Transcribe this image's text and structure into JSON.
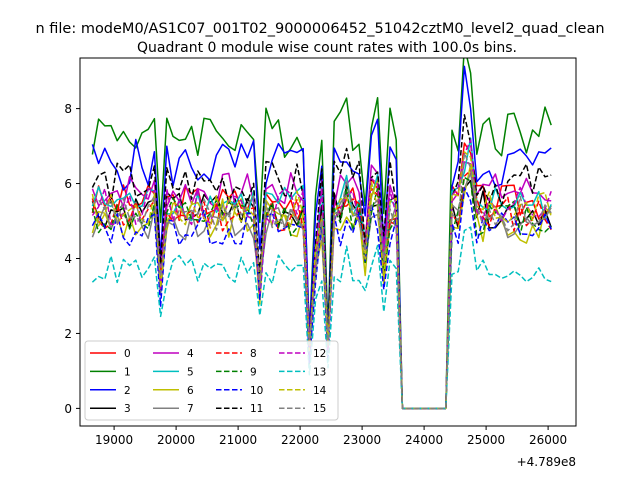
{
  "chart_data": {
    "type": "line",
    "suptitle": "n file: modeM0/AS1C07_001T02_9000006452_51042cztM0_level2_quad_clean",
    "title": "Quadrant 0 module wise count rates with 100.0s bins.",
    "xlabel": "",
    "ylabel": "",
    "x_offset_label": "+4.789e8",
    "xlim": [
      18450,
      26450
    ],
    "ylim": [
      -0.47,
      9.35
    ],
    "xticks": [
      19000,
      20000,
      21000,
      22000,
      23000,
      24000,
      25000,
      26000
    ],
    "xtick_labels": [
      "19000",
      "20000",
      "21000",
      "22000",
      "23000",
      "24000",
      "25000",
      "26000"
    ],
    "yticks": [
      0,
      2,
      4,
      6,
      8
    ],
    "ytick_labels": [
      "0",
      "2",
      "4",
      "6",
      "8"
    ],
    "grid": false,
    "legend_position": "lower-left",
    "x_range": [
      18650,
      26050
    ],
    "x_step": 100,
    "series": [
      {
        "name": "0",
        "color": "#ff0000",
        "dash": "solid",
        "base": 5.5,
        "amp": 0.5,
        "peak": 1.0
      },
      {
        "name": "1",
        "color": "#008000",
        "dash": "solid",
        "base": 7.4,
        "amp": 0.7,
        "peak": 1.0
      },
      {
        "name": "2",
        "color": "#0000ff",
        "dash": "solid",
        "base": 6.5,
        "amp": 0.7,
        "peak": 1.05
      },
      {
        "name": "3",
        "color": "#000000",
        "dash": "solid",
        "base": 5.3,
        "amp": 0.5,
        "peak": 1.0
      },
      {
        "name": "4",
        "color": "#bf00bf",
        "dash": "solid",
        "base": 5.8,
        "amp": 0.5,
        "peak": 1.0
      },
      {
        "name": "5",
        "color": "#00bfbf",
        "dash": "solid",
        "base": 5.5,
        "amp": 0.5,
        "peak": 1.0
      },
      {
        "name": "6",
        "color": "#bfbf00",
        "dash": "solid",
        "base": 5.0,
        "amp": 0.6,
        "peak": 1.0
      },
      {
        "name": "7",
        "color": "#808080",
        "dash": "solid",
        "base": 5.0,
        "amp": 0.5,
        "peak": 1.0
      },
      {
        "name": "8",
        "color": "#ff0000",
        "dash": "dashed",
        "base": 5.2,
        "amp": 0.5,
        "peak": 1.0
      },
      {
        "name": "9",
        "color": "#008000",
        "dash": "dashed",
        "base": 5.1,
        "amp": 0.5,
        "peak": 1.0
      },
      {
        "name": "10",
        "color": "#0000ff",
        "dash": "dashed",
        "base": 4.8,
        "amp": 0.5,
        "peak": 1.0
      },
      {
        "name": "11",
        "color": "#000000",
        "dash": "dashed",
        "base": 6.0,
        "amp": 0.6,
        "peak": 1.05
      },
      {
        "name": "12",
        "color": "#bf00bf",
        "dash": "dashed",
        "base": 5.4,
        "amp": 0.5,
        "peak": 1.0
      },
      {
        "name": "13",
        "color": "#00bfbf",
        "dash": "dashed",
        "base": 3.7,
        "amp": 0.4,
        "peak": 1.0
      },
      {
        "name": "14",
        "color": "#bfbf00",
        "dash": "dashed",
        "base": 5.3,
        "amp": 0.5,
        "peak": 1.0
      },
      {
        "name": "15",
        "color": "#808080",
        "dash": "dashed",
        "base": 5.2,
        "amp": 0.5,
        "peak": 1.0
      }
    ],
    "notes": "Count rates; deep drops near 19750, 21350, 22150, 22450; data gap (~0) from 23600 to 24400; peak near 24650."
  }
}
